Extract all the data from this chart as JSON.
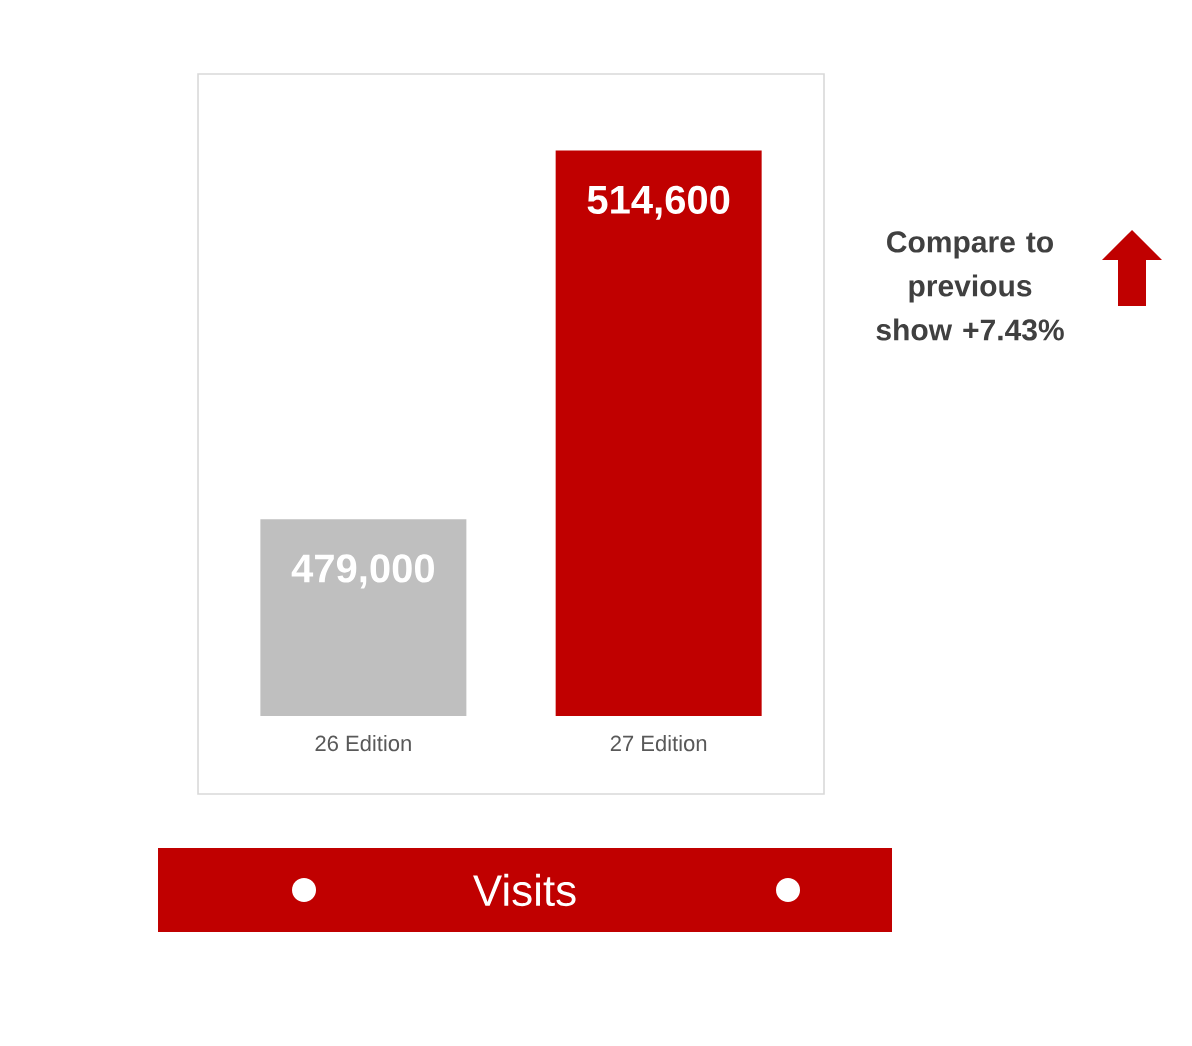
{
  "chart_data": {
    "type": "bar",
    "title": "Visits",
    "categories": [
      "26 Edition",
      "27 Edition"
    ],
    "values": [
      479000,
      514600
    ],
    "colors": [
      "#bfbfbf",
      "#c00000"
    ],
    "value_labels": [
      "479,000",
      "514,600"
    ],
    "ylim": [
      460000,
      522000
    ],
    "tick_labels": "x",
    "annotations": [
      "Compare to previous show +7.43%"
    ]
  }
}
